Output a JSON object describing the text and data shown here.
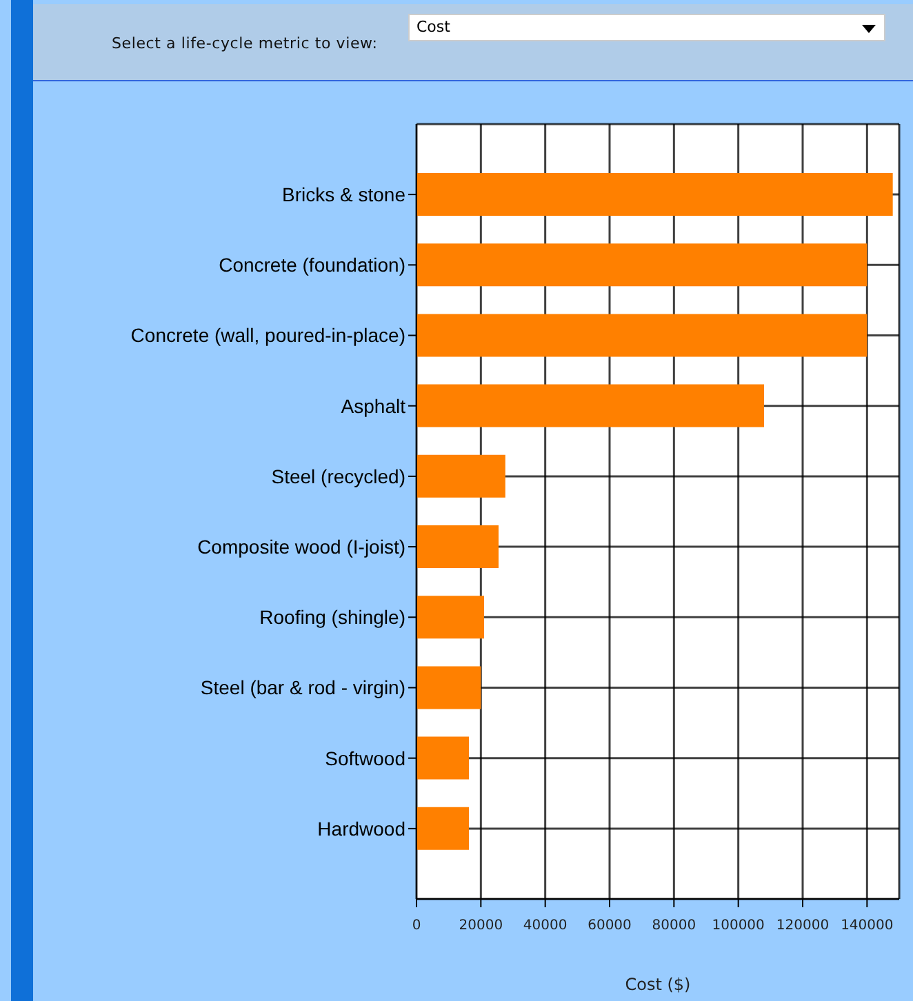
{
  "chart_data": {
    "type": "bar",
    "orientation": "horizontal",
    "xlabel": "Cost ($)",
    "annotations": [
      "Select a life-cycle metric to view:",
      "Cost"
    ],
    "categories": [
      "Bricks & stone",
      "Concrete (foundation)",
      "Concrete (wall, poured-in-place)",
      "Asphalt",
      "Steel (recycled)",
      "Composite wood (I-joist)",
      "Roofing (shingle)",
      "Steel (bar & rod - virgin)",
      "Softwood",
      "Hardwood"
    ],
    "values": [
      148000,
      140000,
      140000,
      108000,
      27600,
      25500,
      21000,
      20000,
      16300,
      16300
    ],
    "color": "#ff8000",
    "xlim": [
      0,
      150000
    ],
    "xticks": [
      0,
      20000,
      40000,
      60000,
      80000,
      100000,
      120000,
      140000
    ],
    "grid": true,
    "legend": false
  }
}
